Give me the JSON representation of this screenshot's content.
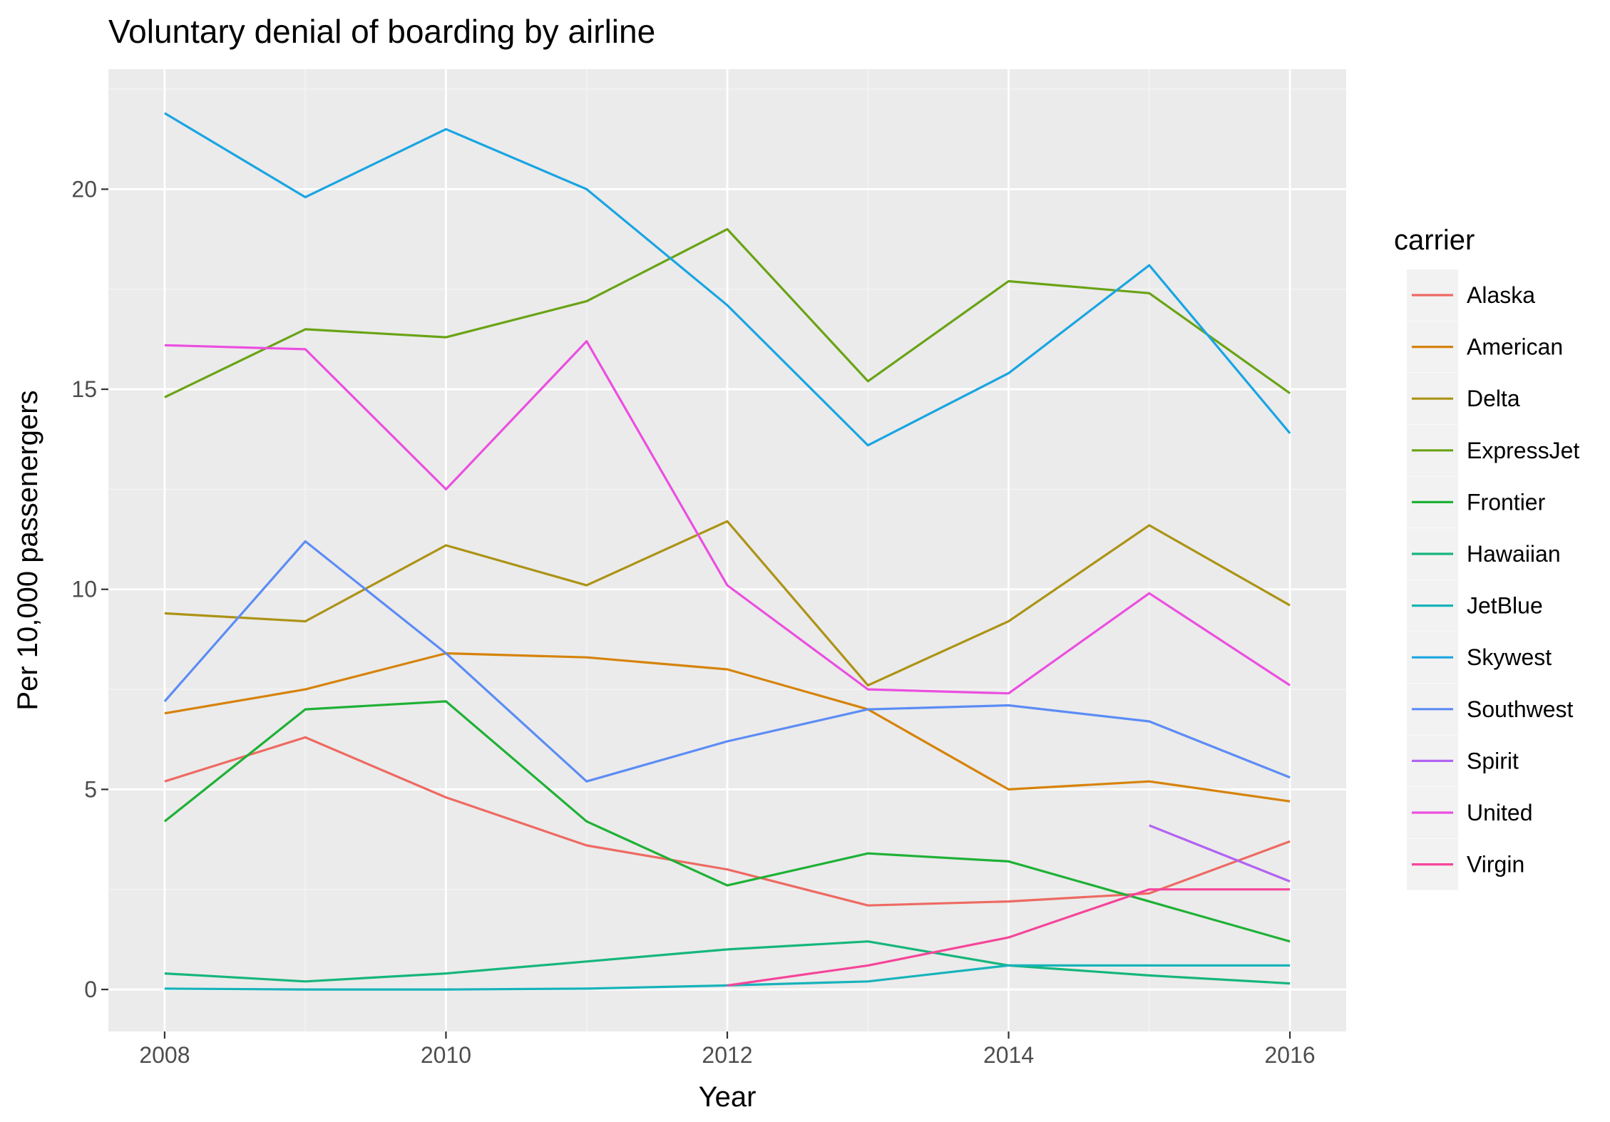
{
  "chart_data": {
    "type": "line",
    "title": "Voluntary denial of boarding by airline",
    "xlabel": "Year",
    "ylabel": "Per 10,000 passenergers",
    "xlim": [
      2007.6,
      2016.4
    ],
    "ylim": [
      -1.05,
      23.0
    ],
    "x_ticks": [
      2008,
      2010,
      2012,
      2014,
      2016
    ],
    "y_ticks": [
      0,
      5,
      10,
      15,
      20
    ],
    "grid": true,
    "legend": {
      "title": "carrier",
      "position": "right"
    },
    "series": [
      {
        "name": "Alaska",
        "color": "#F8766D",
        "x": [
          2008,
          2009,
          2010,
          2011,
          2012,
          2013,
          2014,
          2015,
          2016
        ],
        "values": [
          5.2,
          6.3,
          4.8,
          3.6,
          3.0,
          2.1,
          2.2,
          2.4,
          3.7
        ]
      },
      {
        "name": "American",
        "color": "#DB8E00",
        "x": [
          2008,
          2009,
          2010,
          2011,
          2012,
          2013,
          2014,
          2015,
          2016
        ],
        "values": [
          6.9,
          7.5,
          8.4,
          8.3,
          8.0,
          7.0,
          5.0,
          5.2,
          4.7
        ]
      },
      {
        "name": "Delta",
        "color": "#AEA200",
        "x": [
          2008,
          2009,
          2010,
          2011,
          2012,
          2013,
          2014,
          2015,
          2016
        ],
        "values": [
          9.4,
          9.2,
          11.1,
          10.1,
          11.7,
          7.6,
          9.2,
          11.6,
          9.6
        ]
      },
      {
        "name": "ExpressJet",
        "color": "#64B200",
        "x": [
          2008,
          2009,
          2010,
          2011,
          2012,
          2013,
          2014,
          2015,
          2016
        ],
        "values": [
          14.8,
          16.5,
          16.3,
          17.2,
          19.0,
          15.2,
          17.7,
          17.4,
          14.9
        ]
      },
      {
        "name": "Frontier",
        "color": "#00BD5C",
        "x": [
          2008,
          2009,
          2010,
          2011,
          2012,
          2013,
          2014,
          2015,
          2016
        ],
        "values": [
          4.2,
          7.0,
          7.2,
          4.2,
          2.6,
          3.4,
          3.2,
          2.2,
          1.2
        ]
      },
      {
        "name": "Hawaiian",
        "color": "#00C1A7",
        "x": [
          2008,
          2009,
          2010,
          2011,
          2012,
          2013,
          2014,
          2015,
          2016
        ],
        "values": [
          0.4,
          0.2,
          0.4,
          0.7,
          1.0,
          1.2,
          0.6,
          0.35,
          0.15
        ]
      },
      {
        "name": "JetBlue",
        "color": "#00BADE",
        "x": [
          2008,
          2009,
          2010,
          2011,
          2012,
          2013,
          2014,
          2015,
          2016
        ],
        "values": [
          0.02,
          0.0,
          0.0,
          0.02,
          0.1,
          0.2,
          0.6,
          0.6,
          0.6
        ]
      },
      {
        "name": "Skywest",
        "color": "#00A6FF",
        "x": [
          2008,
          2009,
          2010,
          2011,
          2012,
          2013,
          2014,
          2015,
          2016
        ],
        "values": [
          21.9,
          19.8,
          21.5,
          20.0,
          17.1,
          13.6,
          15.4,
          18.1,
          13.9
        ]
      },
      {
        "name": "Southwest",
        "color": "#B385FF",
        "x": [
          2008,
          2009,
          2010,
          2011,
          2012,
          2013,
          2014,
          2015,
          2016
        ],
        "values": [
          7.2,
          11.2,
          8.4,
          5.2,
          6.2,
          7.0,
          7.1,
          6.7,
          5.3
        ]
      },
      {
        "name": "Spirit",
        "color": "#EF67EB",
        "x": [
          2015,
          2016
        ],
        "values": [
          4.1,
          2.7
        ]
      },
      {
        "name": "United",
        "color": "#FF63B6",
        "x": [
          2008,
          2009,
          2010,
          2011,
          2012,
          2013,
          2014,
          2015,
          2016
        ],
        "values": [
          16.1,
          16.0,
          12.5,
          16.2,
          10.1,
          7.5,
          7.4,
          9.9,
          7.6
        ]
      },
      {
        "name": "Virgin",
        "color": "#FF61C3",
        "x": [
          2012,
          2013,
          2014,
          2015,
          2016
        ],
        "values": [
          0.1,
          0.6,
          1.3,
          2.5,
          2.5
        ]
      }
    ]
  },
  "render_colors": {
    "Alaska": "#EE6A62",
    "American": "#D6830A",
    "Delta": "#AC9315",
    "ExpressJet": "#6AA315",
    "Frontier": "#1EB135",
    "Hawaiian": "#15B67C",
    "JetBlue": "#17B3BA",
    "Skywest": "#19A5E2",
    "Southwest": "#5C8CF5",
    "Spirit": "#B263F0",
    "United": "#EB4FE0",
    "Virgin": "#F5459A"
  }
}
